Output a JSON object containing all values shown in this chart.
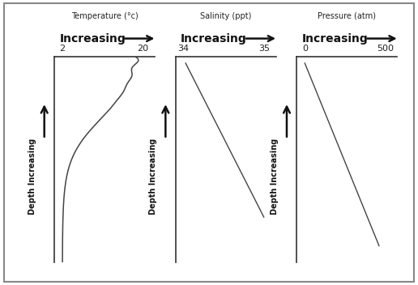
{
  "fig_width": 5.16,
  "fig_height": 3.52,
  "dpi": 100,
  "background_color": "#ffffff",
  "panels": [
    {
      "title": "Temperature (°c)",
      "x_label": "Increasing",
      "y_label": "Depth Increasing",
      "x_tick_left": "2",
      "x_tick_right": "20",
      "curve_type": "temperature",
      "line_color": "#444444"
    },
    {
      "title": "Salinity (ppt)",
      "x_label": "Increasing",
      "y_label": "Depth Increasing",
      "x_tick_left": "34",
      "x_tick_right": "35",
      "curve_type": "salinity",
      "line_color": "#444444"
    },
    {
      "title": "Pressure (atm)",
      "x_label": "Increasing",
      "y_label": "Depth Increasing",
      "x_tick_left": "0",
      "x_tick_right": "500",
      "curve_type": "pressure",
      "line_color": "#444444"
    }
  ],
  "outer_border_color": "#888888",
  "outer_border_lw": 1.5,
  "spine_color": "#333333",
  "arrow_color": "#111111",
  "title_fontsize": 7,
  "label_fontsize": 10,
  "tick_fontsize": 8,
  "ylabel_fontsize": 7
}
